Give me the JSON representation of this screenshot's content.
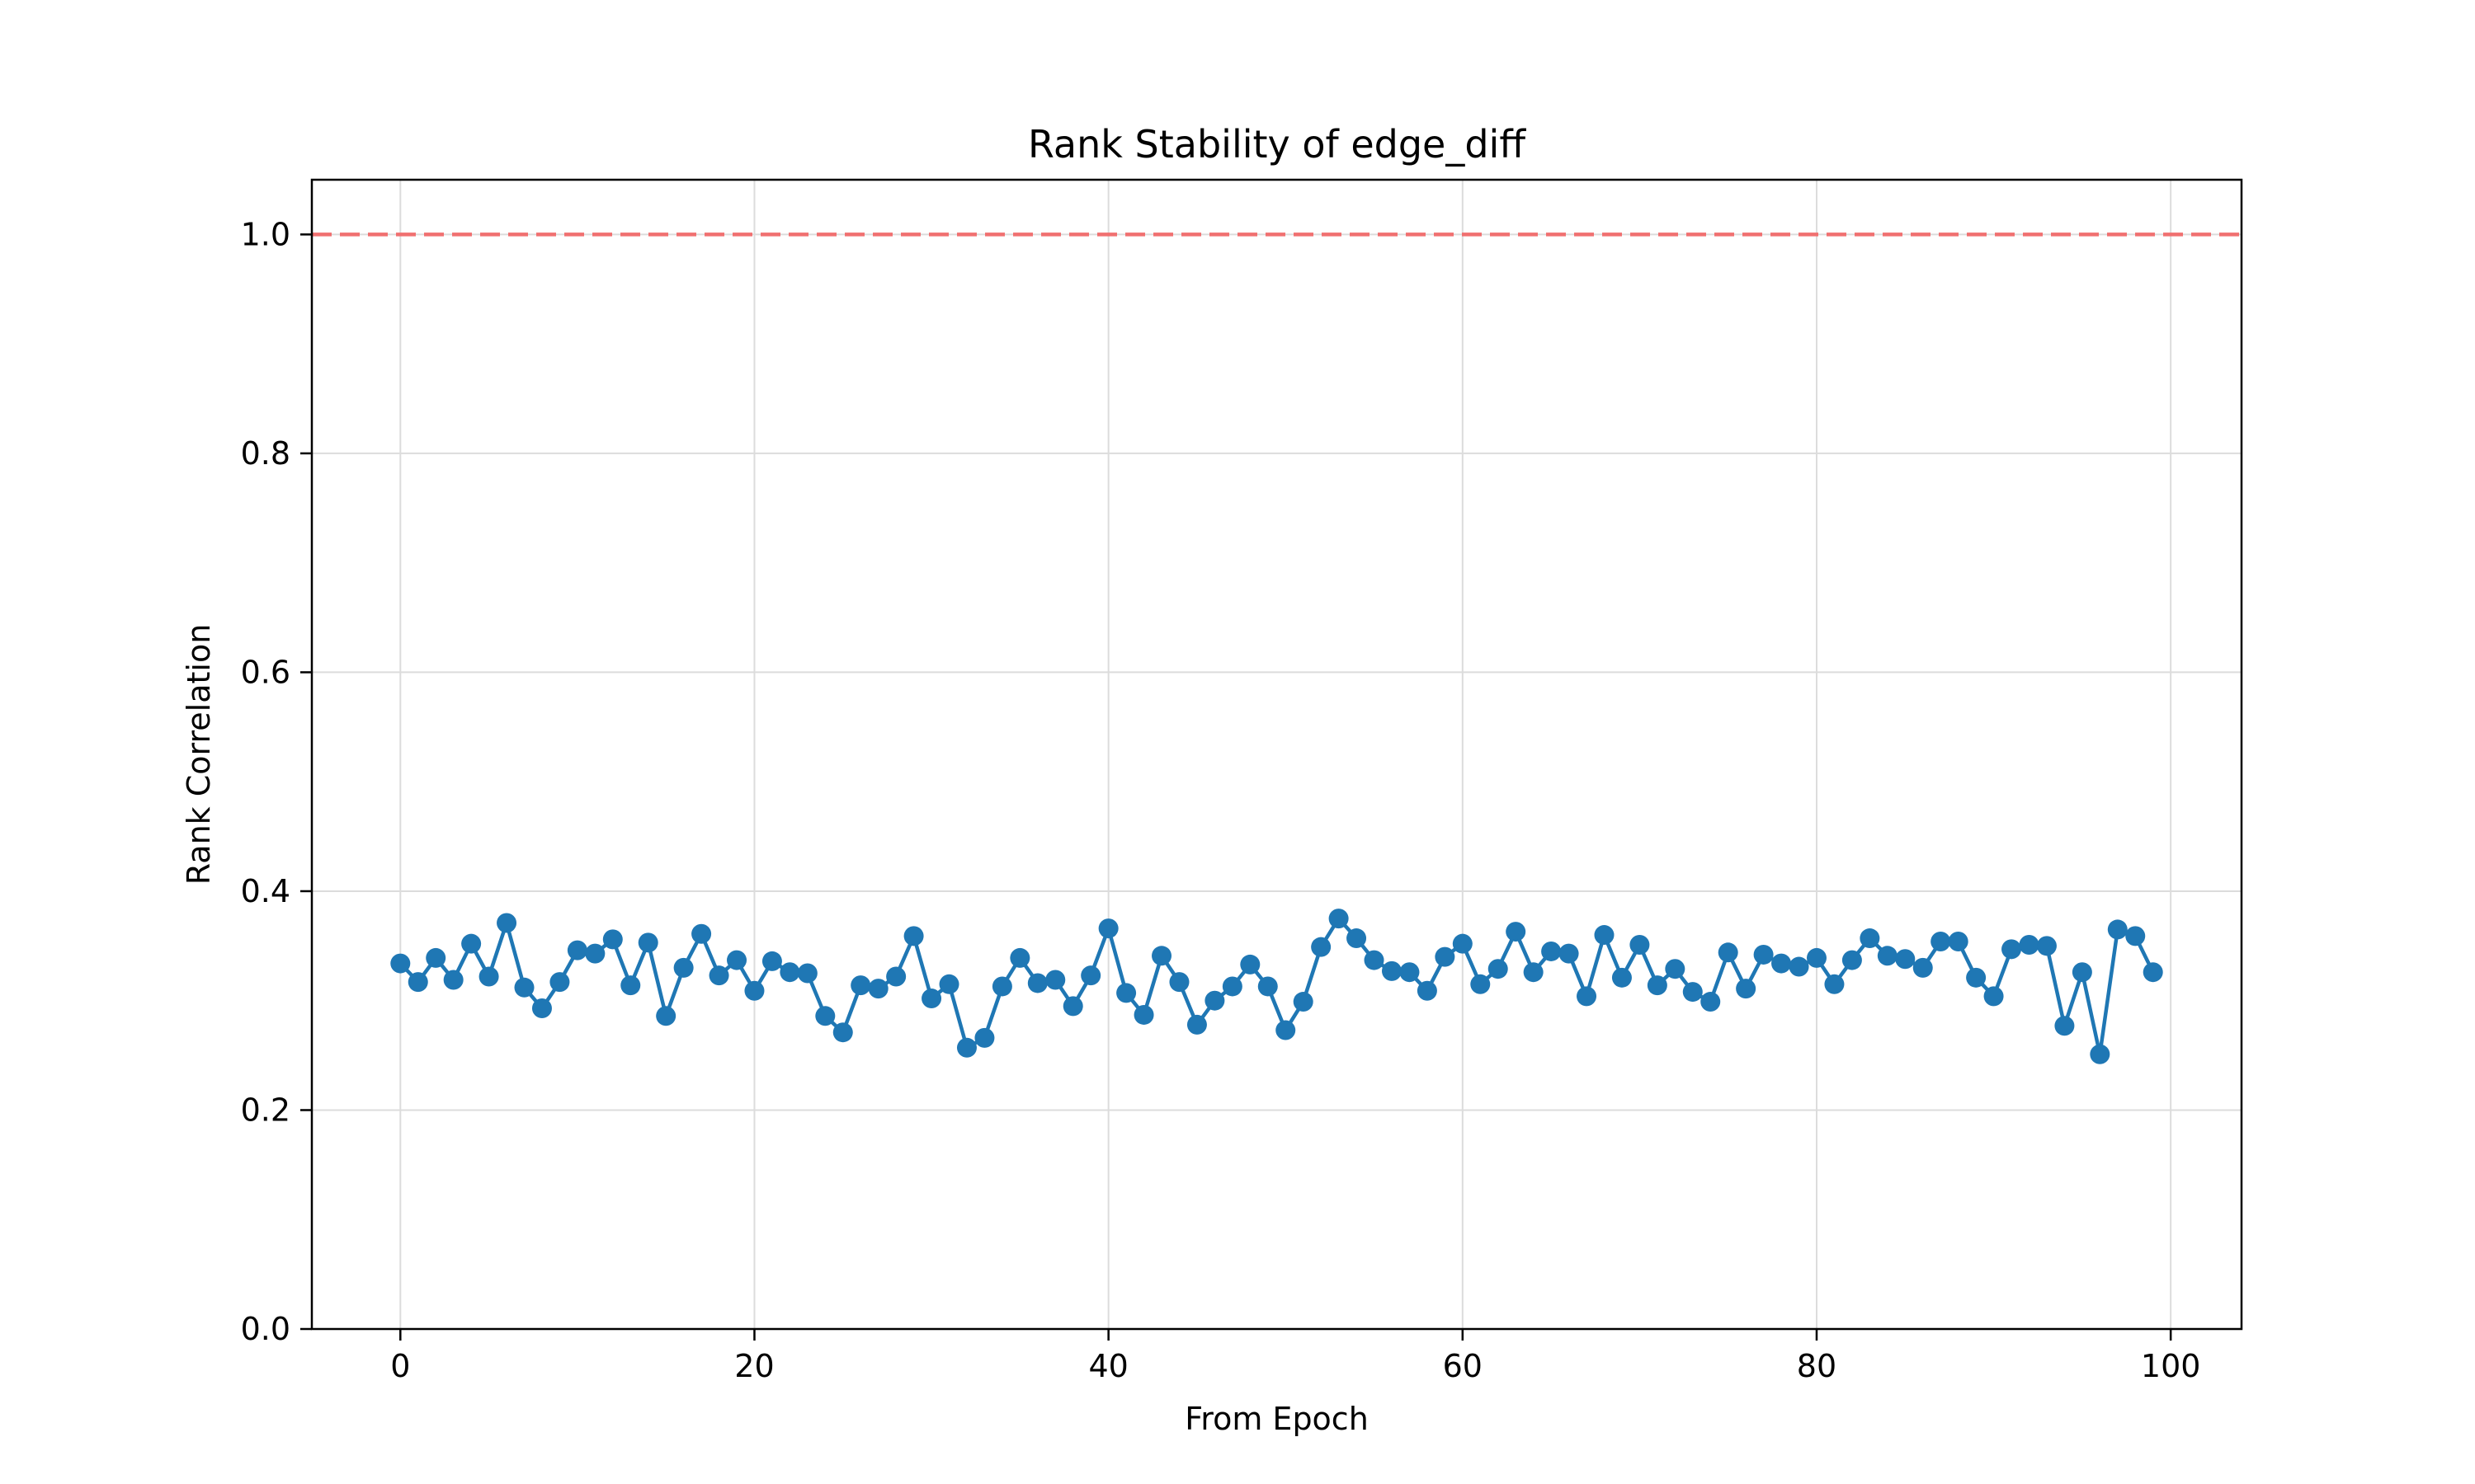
{
  "chart_data": {
    "type": "line",
    "title": "Rank Stability of edge_diff",
    "xlabel": "From Epoch",
    "ylabel": "Rank Correlation",
    "xlim": [
      -5,
      104
    ],
    "ylim": [
      0.0,
      1.05
    ],
    "xticks": [
      0,
      20,
      40,
      60,
      80,
      100
    ],
    "yticks": [
      0.0,
      0.2,
      0.4,
      0.6,
      0.8,
      1.0
    ],
    "xtick_labels": [
      "0",
      "20",
      "40",
      "60",
      "80",
      "100"
    ],
    "ytick_labels": [
      "0.0",
      "0.2",
      "0.4",
      "0.6",
      "0.8",
      "1.0"
    ],
    "grid": true,
    "reference_line": {
      "y": 1.0,
      "style": "dashed",
      "color": "#f07070"
    },
    "series": [
      {
        "color": "#1f77b4",
        "marker": "circle",
        "x": [
          0,
          1,
          2,
          3,
          4,
          5,
          6,
          7,
          8,
          9,
          10,
          11,
          12,
          13,
          14,
          15,
          16,
          17,
          18,
          19,
          20,
          21,
          22,
          23,
          24,
          25,
          26,
          27,
          28,
          29,
          30,
          31,
          32,
          33,
          34,
          35,
          36,
          37,
          38,
          39,
          40,
          41,
          42,
          43,
          44,
          45,
          46,
          47,
          48,
          49,
          50,
          51,
          52,
          53,
          54,
          55,
          56,
          57,
          58,
          59,
          60,
          61,
          62,
          63,
          64,
          65,
          66,
          67,
          68,
          69,
          70,
          71,
          72,
          73,
          74,
          75,
          76,
          77,
          78,
          79,
          80,
          81,
          82,
          83,
          84,
          85,
          86,
          87,
          88,
          89,
          90,
          91,
          92,
          93,
          94,
          95,
          96,
          97,
          98,
          99
        ],
        "values": [
          0.334,
          0.317,
          0.339,
          0.319,
          0.352,
          0.322,
          0.371,
          0.312,
          0.293,
          0.317,
          0.346,
          0.343,
          0.356,
          0.314,
          0.353,
          0.286,
          0.33,
          0.361,
          0.323,
          0.337,
          0.309,
          0.336,
          0.326,
          0.325,
          0.286,
          0.271,
          0.314,
          0.311,
          0.322,
          0.359,
          0.302,
          0.315,
          0.257,
          0.266,
          0.313,
          0.339,
          0.316,
          0.319,
          0.295,
          0.323,
          0.366,
          0.307,
          0.287,
          0.341,
          0.317,
          0.278,
          0.3,
          0.313,
          0.333,
          0.313,
          0.273,
          0.299,
          0.349,
          0.375,
          0.357,
          0.337,
          0.327,
          0.326,
          0.309,
          0.34,
          0.352,
          0.315,
          0.329,
          0.363,
          0.326,
          0.345,
          0.343,
          0.304,
          0.36,
          0.321,
          0.351,
          0.314,
          0.329,
          0.308,
          0.299,
          0.344,
          0.311,
          0.342,
          0.334,
          0.331,
          0.339,
          0.315,
          0.337,
          0.357,
          0.341,
          0.338,
          0.33,
          0.354,
          0.354,
          0.321,
          0.304,
          0.347,
          0.351,
          0.35,
          0.277,
          0.326,
          0.251,
          0.365,
          0.359,
          0.326
        ]
      }
    ]
  }
}
